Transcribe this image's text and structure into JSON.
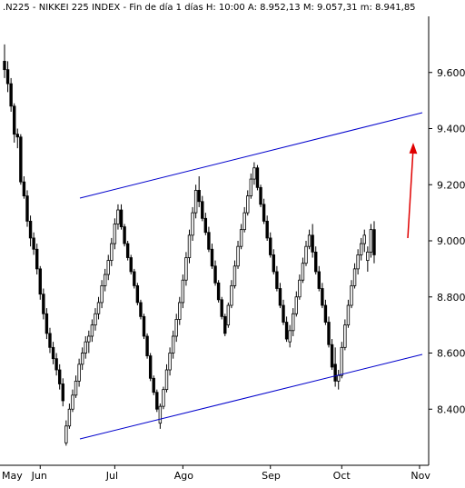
{
  "header": {
    "text": ".N225 - NIKKEI 225 INDEX - Fin de día 1 días H: 10:00  A: 8.952,13  M: 9.057,31  m: 8.941,85"
  },
  "chart_data": {
    "type": "candlestick",
    "title": ".N225 - NIKKEI 225 INDEX - Fin de día 1 días H: 10:00  A: 8.952,13  M: 9.057,31  m: 8.941,85",
    "xlabel": "",
    "ylabel": "",
    "ylim": [
      8200,
      9800
    ],
    "y_ticks": [
      {
        "value": 8400,
        "label": "8.400"
      },
      {
        "value": 8600,
        "label": "8.600"
      },
      {
        "value": 8800,
        "label": "8.800"
      },
      {
        "value": 9000,
        "label": "9.000"
      },
      {
        "value": 9200,
        "label": "9.200"
      },
      {
        "value": 9400,
        "label": "9.400"
      },
      {
        "value": 9600,
        "label": "9.600"
      }
    ],
    "x_ticks": [
      {
        "index": -9,
        "label": "May"
      },
      {
        "index": 11,
        "label": "Jun"
      },
      {
        "index": 34,
        "label": "Jul"
      },
      {
        "index": 55,
        "label": "Ago"
      },
      {
        "index": 82,
        "label": "Sep"
      },
      {
        "index": 104,
        "label": "Oct"
      },
      {
        "index": 128,
        "label": "Nov"
      }
    ],
    "grid": false,
    "candle_colors": {
      "up": "#ffffff",
      "down": "#000000",
      "outline": "#000000"
    },
    "trendline_color": "#0000cc",
    "arrow_color": "#e00000",
    "bars": [
      [
        9640,
        9700,
        9580,
        9610
      ],
      [
        9610,
        9640,
        9530,
        9560
      ],
      [
        9560,
        9580,
        9460,
        9480
      ],
      [
        9480,
        9490,
        9350,
        9380
      ],
      [
        9380,
        9400,
        9330,
        9370
      ],
      [
        9370,
        9380,
        9200,
        9210
      ],
      [
        9210,
        9230,
        9150,
        9160
      ],
      [
        9160,
        9180,
        9050,
        9070
      ],
      [
        9070,
        9090,
        8980,
        9010
      ],
      [
        9010,
        9030,
        8950,
        8970
      ],
      [
        8970,
        8990,
        8880,
        8900
      ],
      [
        8900,
        8910,
        8790,
        8810
      ],
      [
        8810,
        8830,
        8720,
        8740
      ],
      [
        8740,
        8760,
        8650,
        8670
      ],
      [
        8670,
        8690,
        8600,
        8620
      ],
      [
        8620,
        8640,
        8560,
        8580
      ],
      [
        8580,
        8600,
        8520,
        8540
      ],
      [
        8540,
        8560,
        8470,
        8490
      ],
      [
        8490,
        8510,
        8410,
        8430
      ],
      [
        8280,
        8360,
        8270,
        8340
      ],
      [
        8340,
        8420,
        8330,
        8400
      ],
      [
        8400,
        8470,
        8390,
        8450
      ],
      [
        8450,
        8520,
        8440,
        8500
      ],
      [
        8500,
        8580,
        8480,
        8560
      ],
      [
        8560,
        8620,
        8540,
        8600
      ],
      [
        8600,
        8660,
        8580,
        8640
      ],
      [
        8640,
        8680,
        8600,
        8660
      ],
      [
        8660,
        8720,
        8640,
        8700
      ],
      [
        8700,
        8760,
        8680,
        8740
      ],
      [
        8740,
        8800,
        8720,
        8780
      ],
      [
        8780,
        8860,
        8760,
        8840
      ],
      [
        8840,
        8900,
        8820,
        8880
      ],
      [
        8880,
        8950,
        8860,
        8930
      ],
      [
        8930,
        9010,
        8910,
        8990
      ],
      [
        8990,
        9080,
        8970,
        9060
      ],
      [
        9060,
        9130,
        9040,
        9110
      ],
      [
        9110,
        9130,
        9040,
        9050
      ],
      [
        9050,
        9060,
        8980,
        8990
      ],
      [
        8990,
        9000,
        8930,
        8940
      ],
      [
        8940,
        8950,
        8880,
        8890
      ],
      [
        8890,
        8900,
        8830,
        8840
      ],
      [
        8840,
        8850,
        8770,
        8780
      ],
      [
        8780,
        8790,
        8720,
        8730
      ],
      [
        8730,
        8740,
        8650,
        8660
      ],
      [
        8660,
        8670,
        8580,
        8590
      ],
      [
        8590,
        8600,
        8500,
        8510
      ],
      [
        8510,
        8520,
        8450,
        8460
      ],
      [
        8460,
        8470,
        8390,
        8400
      ],
      [
        8350,
        8420,
        8330,
        8410
      ],
      [
        8410,
        8480,
        8400,
        8470
      ],
      [
        8470,
        8560,
        8460,
        8540
      ],
      [
        8540,
        8620,
        8520,
        8600
      ],
      [
        8600,
        8680,
        8580,
        8660
      ],
      [
        8660,
        8740,
        8640,
        8720
      ],
      [
        8720,
        8800,
        8700,
        8780
      ],
      [
        8780,
        8880,
        8760,
        8860
      ],
      [
        8860,
        8960,
        8840,
        8940
      ],
      [
        8940,
        9040,
        8920,
        9020
      ],
      [
        9020,
        9120,
        9000,
        9100
      ],
      [
        9100,
        9200,
        9080,
        9180
      ],
      [
        9180,
        9230,
        9120,
        9140
      ],
      [
        9140,
        9160,
        9070,
        9080
      ],
      [
        9080,
        9100,
        9020,
        9030
      ],
      [
        9030,
        9050,
        8960,
        8970
      ],
      [
        8970,
        8990,
        8900,
        8910
      ],
      [
        8910,
        8930,
        8840,
        8850
      ],
      [
        8850,
        8860,
        8780,
        8790
      ],
      [
        8790,
        8800,
        8720,
        8730
      ],
      [
        8730,
        8740,
        8660,
        8670
      ],
      [
        8700,
        8780,
        8690,
        8770
      ],
      [
        8770,
        8860,
        8760,
        8840
      ],
      [
        8840,
        8930,
        8830,
        8910
      ],
      [
        8910,
        9000,
        8900,
        8980
      ],
      [
        8980,
        9060,
        8970,
        9040
      ],
      [
        9040,
        9120,
        9030,
        9100
      ],
      [
        9100,
        9180,
        9090,
        9160
      ],
      [
        9160,
        9240,
        9150,
        9220
      ],
      [
        9220,
        9280,
        9200,
        9260
      ],
      [
        9260,
        9270,
        9180,
        9190
      ],
      [
        9190,
        9200,
        9120,
        9130
      ],
      [
        9130,
        9150,
        9060,
        9070
      ],
      [
        9070,
        9090,
        9000,
        9010
      ],
      [
        9010,
        9030,
        8940,
        8950
      ],
      [
        8950,
        8970,
        8880,
        8890
      ],
      [
        8890,
        8910,
        8820,
        8830
      ],
      [
        8830,
        8850,
        8760,
        8770
      ],
      [
        8770,
        8790,
        8700,
        8710
      ],
      [
        8710,
        8730,
        8640,
        8650
      ],
      [
        8640,
        8700,
        8620,
        8680
      ],
      [
        8680,
        8760,
        8660,
        8740
      ],
      [
        8740,
        8820,
        8730,
        8800
      ],
      [
        8800,
        8880,
        8790,
        8860
      ],
      [
        8860,
        8940,
        8850,
        8920
      ],
      [
        8920,
        9000,
        8910,
        8980
      ],
      [
        8980,
        9040,
        8970,
        9020
      ],
      [
        9020,
        9060,
        8940,
        8960
      ],
      [
        8960,
        8980,
        8880,
        8890
      ],
      [
        8890,
        8910,
        8820,
        8830
      ],
      [
        8830,
        8850,
        8760,
        8770
      ],
      [
        8770,
        8790,
        8700,
        8710
      ],
      [
        8710,
        8730,
        8620,
        8630
      ],
      [
        8630,
        8650,
        8540,
        8550
      ],
      [
        8560,
        8620,
        8480,
        8500
      ],
      [
        8500,
        8540,
        8470,
        8520
      ],
      [
        8520,
        8640,
        8510,
        8620
      ],
      [
        8620,
        8720,
        8610,
        8700
      ],
      [
        8700,
        8790,
        8690,
        8770
      ],
      [
        8770,
        8860,
        8760,
        8840
      ],
      [
        8840,
        8920,
        8830,
        8900
      ],
      [
        8900,
        8970,
        8880,
        8950
      ],
      [
        8950,
        9010,
        8930,
        8990
      ],
      [
        8990,
        9040,
        8960,
        9020
      ],
      [
        8930,
        8980,
        8890,
        8960
      ],
      [
        8960,
        9060,
        8940,
        9040
      ],
      [
        9040,
        9070,
        8920,
        8950
      ]
    ]
  }
}
